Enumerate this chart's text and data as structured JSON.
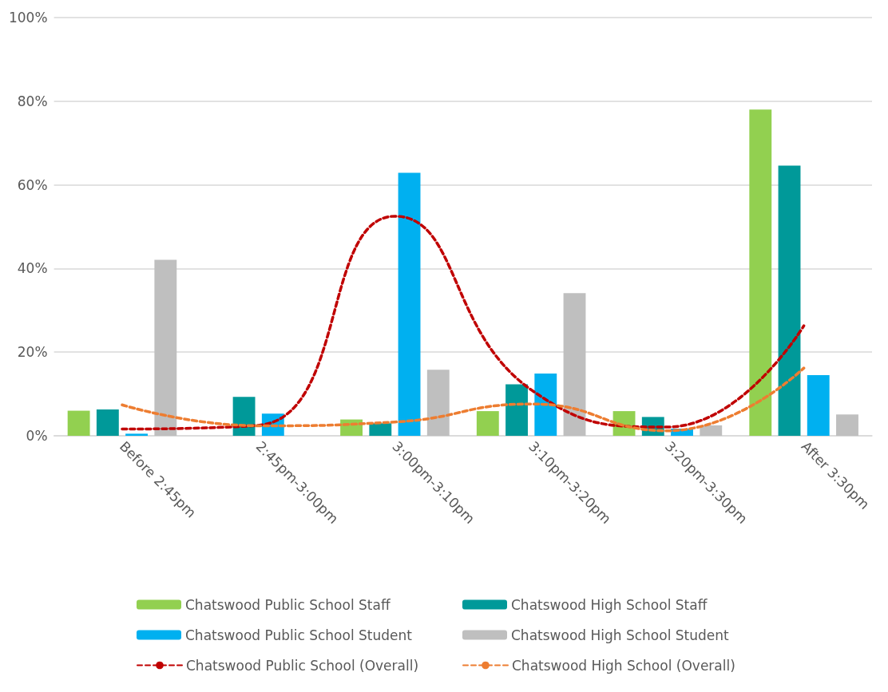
{
  "chart_data": {
    "type": "bar",
    "categories": [
      "Before 2:45pm",
      "2:45pm-3:00pm",
      "3:00pm-3:10pm",
      "3:10pm-3:20pm",
      "3:20pm-3:30pm",
      "After 3:30pm"
    ],
    "series": [
      {
        "name": "Chatswood Public School Staff",
        "color": "#92d050",
        "values": [
          6.0,
          null,
          3.9,
          5.9,
          5.9,
          78.0
        ]
      },
      {
        "name": "Chatswood High School Staff",
        "color": "#009999",
        "values": [
          6.3,
          9.3,
          3.0,
          12.3,
          4.5,
          64.6
        ]
      },
      {
        "name": "Chatswood Public School Student",
        "color": "#00b0f0",
        "values": [
          0.5,
          5.3,
          62.9,
          14.9,
          1.7,
          14.5
        ]
      },
      {
        "name": "Chatswood High School Student",
        "color": "#bfbfbf",
        "values": [
          42.1,
          null,
          15.8,
          34.1,
          2.5,
          5.1
        ]
      },
      {
        "name": "Chatswood Public School (Overall)",
        "type": "line",
        "color": "#c00000",
        "line_style": "dashed",
        "values": [
          1.6,
          2.5,
          52.5,
          11,
          2.1,
          26.3
        ]
      },
      {
        "name": "Chatswood High School (Overall)",
        "type": "line",
        "color": "#ed7d31",
        "line_style": "dashed",
        "values": [
          7.4,
          2.4,
          3.3,
          7.6,
          1.2,
          16.2
        ]
      }
    ],
    "ylim": [
      0,
      100
    ],
    "yticks": [
      {
        "value": 0,
        "label": "0%"
      },
      {
        "value": 20,
        "label": "20%"
      },
      {
        "value": 40,
        "label": "40%"
      },
      {
        "value": 60,
        "label": "60%"
      },
      {
        "value": 80,
        "label": "80%"
      },
      {
        "value": 100,
        "label": "100%"
      }
    ],
    "grid": "y",
    "legend": "bottom",
    "marker": "none"
  }
}
